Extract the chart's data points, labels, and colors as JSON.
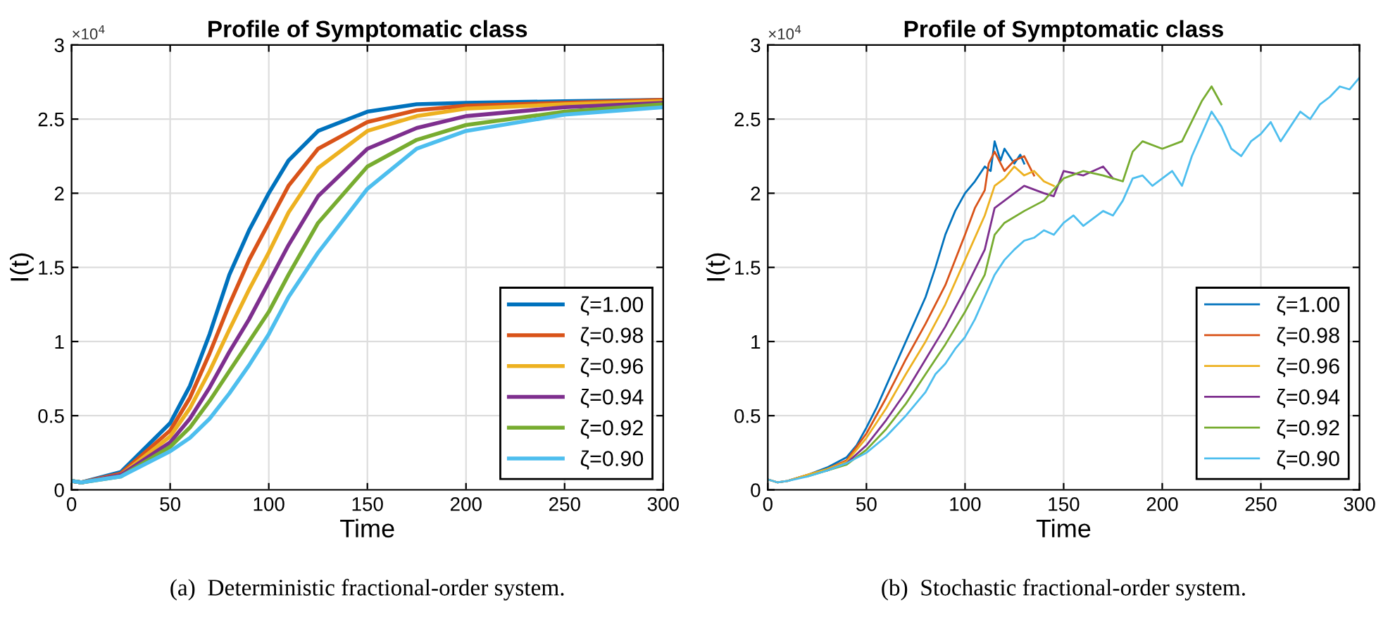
{
  "chart_data": [
    {
      "type": "line",
      "title": "Profile of Symptomatic class",
      "xlabel": "Time",
      "ylabel": "I(t)",
      "xlim": [
        0,
        300
      ],
      "xticks": [
        0,
        50,
        100,
        150,
        200,
        250,
        300
      ],
      "ylim": [
        0,
        3
      ],
      "yticks": [
        0,
        0.5,
        1,
        1.5,
        2,
        2.5,
        3
      ],
      "grid": true,
      "legend": "bottom right",
      "line_style": "solid",
      "marker": "none",
      "annotations": [
        "×10$^{4}$",
        "(a)  Deterministic fractional-order system."
      ],
      "x": [
        0,
        5,
        25,
        50,
        60,
        70,
        80,
        90,
        100,
        110,
        125,
        150,
        175,
        200,
        250,
        300
      ],
      "series": [
        {
          "name": "ζ=1.00",
          "color": "#0072bd",
          "values": [
            0.06,
            0.05,
            0.12,
            0.45,
            0.7,
            1.05,
            1.45,
            1.75,
            2.0,
            2.22,
            2.42,
            2.55,
            2.6,
            2.61,
            2.62,
            2.63
          ]
        },
        {
          "name": "ζ=0.98",
          "color": "#d95319",
          "values": [
            0.06,
            0.05,
            0.11,
            0.4,
            0.62,
            0.92,
            1.25,
            1.55,
            1.8,
            2.05,
            2.3,
            2.48,
            2.56,
            2.59,
            2.61,
            2.63
          ]
        },
        {
          "name": "ζ=0.96",
          "color": "#edb120",
          "values": [
            0.06,
            0.05,
            0.1,
            0.36,
            0.55,
            0.8,
            1.08,
            1.35,
            1.6,
            1.87,
            2.17,
            2.42,
            2.52,
            2.57,
            2.6,
            2.62
          ]
        },
        {
          "name": "ζ=0.94",
          "color": "#7e2f8e",
          "values": [
            0.06,
            0.05,
            0.1,
            0.32,
            0.48,
            0.69,
            0.93,
            1.15,
            1.4,
            1.65,
            1.98,
            2.3,
            2.44,
            2.52,
            2.58,
            2.61
          ]
        },
        {
          "name": "ζ=0.92",
          "color": "#77ac30",
          "values": [
            0.06,
            0.05,
            0.09,
            0.29,
            0.42,
            0.6,
            0.8,
            1.0,
            1.2,
            1.45,
            1.8,
            2.18,
            2.36,
            2.46,
            2.55,
            2.6
          ]
        },
        {
          "name": "ζ=0.90",
          "color": "#4dbeee",
          "values": [
            0.06,
            0.05,
            0.09,
            0.26,
            0.35,
            0.48,
            0.65,
            0.84,
            1.05,
            1.3,
            1.6,
            2.03,
            2.3,
            2.42,
            2.53,
            2.58
          ]
        }
      ]
    },
    {
      "type": "line",
      "title": "Profile of Symptomatic class",
      "xlabel": "Time",
      "ylabel": "I(t)",
      "xlim": [
        0,
        300
      ],
      "xticks": [
        0,
        50,
        100,
        150,
        200,
        250,
        300
      ],
      "ylim": [
        0,
        3
      ],
      "yticks": [
        0,
        0.5,
        1,
        1.5,
        2,
        2.5,
        3
      ],
      "grid": true,
      "legend": "bottom right",
      "line_style": "solid",
      "marker": "none",
      "annotations": [
        "×10$^{4}$",
        "(b)  Stochastic fractional-order system."
      ],
      "series": [
        {
          "name": "ζ=1.00",
          "color": "#0072bd",
          "x": [
            0,
            5,
            10,
            20,
            30,
            40,
            45,
            50,
            55,
            60,
            65,
            70,
            75,
            80,
            85,
            90,
            95,
            100,
            105,
            110,
            113,
            115,
            118,
            120,
            125,
            128,
            130
          ],
          "values": [
            0.07,
            0.05,
            0.06,
            0.1,
            0.15,
            0.22,
            0.3,
            0.42,
            0.55,
            0.7,
            0.85,
            1.0,
            1.15,
            1.3,
            1.5,
            1.72,
            1.88,
            2.0,
            2.08,
            2.18,
            2.15,
            2.35,
            2.22,
            2.3,
            2.2,
            2.26,
            2.2
          ]
        },
        {
          "name": "ζ=0.98",
          "color": "#d95319",
          "x": [
            0,
            5,
            10,
            20,
            30,
            40,
            50,
            60,
            70,
            80,
            90,
            100,
            105,
            110,
            112,
            115,
            120,
            125,
            130,
            135
          ],
          "values": [
            0.07,
            0.05,
            0.06,
            0.1,
            0.14,
            0.2,
            0.38,
            0.62,
            0.88,
            1.12,
            1.38,
            1.72,
            1.9,
            2.02,
            2.2,
            2.28,
            2.15,
            2.22,
            2.25,
            2.12
          ]
        },
        {
          "name": "ζ=0.96",
          "color": "#edb120",
          "x": [
            0,
            5,
            10,
            20,
            30,
            40,
            50,
            60,
            70,
            80,
            90,
            100,
            110,
            115,
            120,
            125,
            130,
            135,
            140,
            145
          ],
          "values": [
            0.07,
            0.05,
            0.06,
            0.1,
            0.14,
            0.19,
            0.35,
            0.55,
            0.78,
            1.0,
            1.25,
            1.55,
            1.85,
            2.05,
            2.1,
            2.18,
            2.12,
            2.15,
            2.08,
            2.05
          ]
        },
        {
          "name": "ζ=0.94",
          "color": "#7e2f8e",
          "x": [
            30,
            40,
            50,
            60,
            70,
            80,
            90,
            100,
            110,
            115,
            120,
            130,
            140,
            145,
            150,
            160,
            170,
            175
          ],
          "values": [
            0.13,
            0.18,
            0.3,
            0.47,
            0.66,
            0.88,
            1.1,
            1.35,
            1.62,
            1.9,
            1.95,
            2.05,
            2.0,
            1.98,
            2.15,
            2.12,
            2.18,
            2.1
          ]
        },
        {
          "name": "ζ=0.92",
          "color": "#77ac30",
          "x": [
            20,
            30,
            40,
            50,
            60,
            70,
            80,
            90,
            100,
            110,
            115,
            120,
            130,
            140,
            150,
            160,
            170,
            180,
            185,
            190,
            200,
            210,
            220,
            225,
            230
          ],
          "values": [
            0.09,
            0.13,
            0.17,
            0.27,
            0.41,
            0.58,
            0.78,
            0.98,
            1.2,
            1.45,
            1.72,
            1.8,
            1.88,
            1.95,
            2.1,
            2.15,
            2.12,
            2.08,
            2.28,
            2.35,
            2.3,
            2.35,
            2.62,
            2.72,
            2.6
          ]
        },
        {
          "name": "ζ=0.90",
          "color": "#4dbeee",
          "x": [
            0,
            5,
            10,
            20,
            30,
            40,
            50,
            60,
            70,
            80,
            85,
            90,
            95,
            100,
            105,
            110,
            115,
            120,
            125,
            130,
            135,
            140,
            145,
            150,
            155,
            160,
            165,
            170,
            175,
            180,
            185,
            190,
            195,
            200,
            205,
            210,
            215,
            220,
            225,
            230,
            235,
            240,
            245,
            250,
            255,
            260,
            265,
            270,
            275,
            280,
            285,
            290,
            295,
            300
          ],
          "values": [
            0.07,
            0.05,
            0.06,
            0.09,
            0.13,
            0.18,
            0.25,
            0.36,
            0.5,
            0.66,
            0.78,
            0.85,
            0.95,
            1.03,
            1.15,
            1.3,
            1.45,
            1.55,
            1.62,
            1.68,
            1.7,
            1.75,
            1.72,
            1.8,
            1.85,
            1.78,
            1.83,
            1.88,
            1.85,
            1.95,
            2.1,
            2.12,
            2.05,
            2.1,
            2.15,
            2.05,
            2.25,
            2.4,
            2.55,
            2.45,
            2.3,
            2.25,
            2.35,
            2.4,
            2.48,
            2.35,
            2.45,
            2.55,
            2.5,
            2.6,
            2.65,
            2.72,
            2.7,
            2.78
          ]
        }
      ]
    }
  ]
}
